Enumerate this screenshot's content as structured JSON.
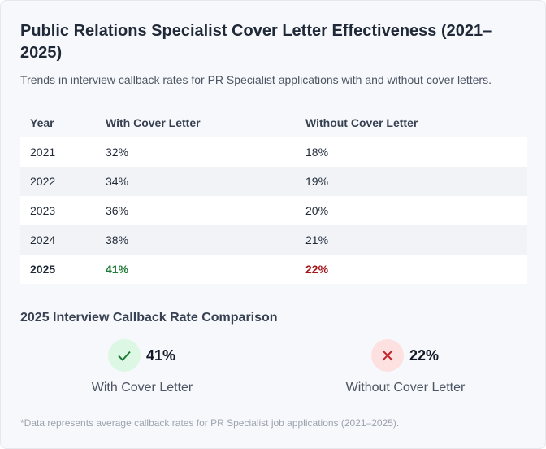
{
  "header": {
    "title": "Public Relations Specialist Cover Letter Effectiveness (2021–2025)",
    "subtitle": "Trends in interview callback rates for PR Specialist applications with and without cover letters."
  },
  "table": {
    "columns": [
      "Year",
      "With Cover Letter",
      "Without Cover Letter"
    ],
    "rows": [
      [
        "2021",
        "32%",
        "18%"
      ],
      [
        "2022",
        "34%",
        "19%"
      ],
      [
        "2023",
        "36%",
        "20%"
      ],
      [
        "2024",
        "38%",
        "21%"
      ],
      [
        "2025",
        "41%",
        "22%"
      ]
    ]
  },
  "comparison": {
    "title": "2025 Interview Callback Rate Comparison",
    "items": [
      {
        "value": "41%",
        "label": "With Cover Letter"
      },
      {
        "value": "22%",
        "label": "Without Cover Letter"
      }
    ]
  },
  "footnote": "*Data represents average callback rates for PR Specialist job applications (2021–2025)."
}
